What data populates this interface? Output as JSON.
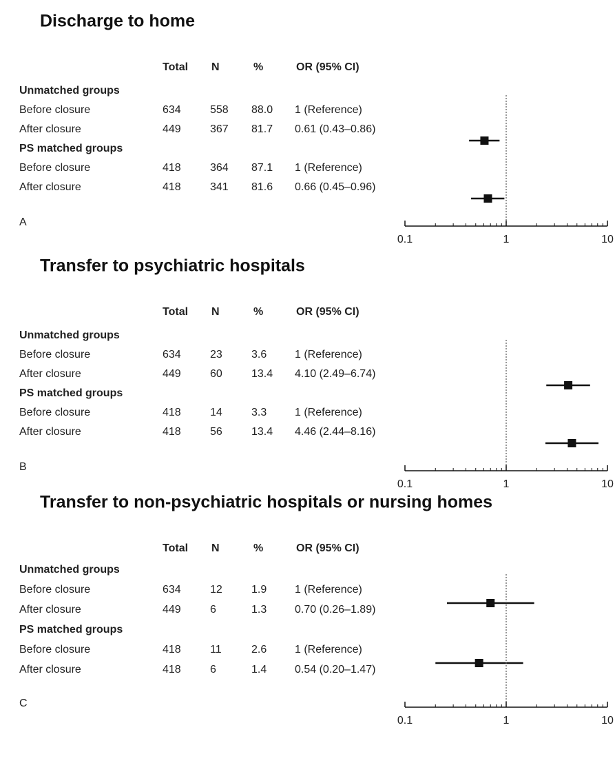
{
  "chart_data": [
    {
      "type": "forest",
      "title": "Discharge to home",
      "panel": "A",
      "columns": [
        "Total",
        "N",
        "%",
        "OR (95% CI)"
      ],
      "groups": [
        {
          "name": "Unmatched groups",
          "rows": [
            {
              "cells": [
                "Before closure",
                634,
                558,
                "88.0",
                "1 (Reference)"
              ]
            },
            {
              "cells": [
                "After closure",
                449,
                367,
                "81.7",
                "0.61 (0.43–0.86)"
              ],
              "or": 0.61,
              "ci": [
                0.43,
                0.86
              ]
            }
          ]
        },
        {
          "name": "PS matched groups",
          "rows": [
            {
              "cells": [
                "Before closure",
                418,
                364,
                "87.1",
                "1 (Reference)"
              ]
            },
            {
              "cells": [
                "After closure",
                418,
                341,
                "81.6",
                "0.66 (0.45–0.96)"
              ],
              "or": 0.66,
              "ci": [
                0.45,
                0.96
              ]
            }
          ]
        }
      ],
      "xscale": "log",
      "xlim": [
        0.1,
        10
      ],
      "xticks": [
        0.1,
        1,
        10
      ],
      "minor_xticks": [
        0.2,
        0.3,
        0.4,
        0.5,
        0.6,
        0.7,
        0.8,
        0.9,
        2,
        3,
        4,
        5,
        6,
        7,
        8,
        9
      ],
      "ref_line": 1,
      "color": "#111111"
    },
    {
      "type": "forest",
      "title": "Transfer to psychiatric hospitals",
      "panel": "B",
      "columns": [
        "Total",
        "N",
        "%",
        "OR (95% CI)"
      ],
      "groups": [
        {
          "name": "Unmatched groups",
          "rows": [
            {
              "cells": [
                "Before closure",
                634,
                23,
                "3.6",
                "1 (Reference)"
              ]
            },
            {
              "cells": [
                "After closure",
                449,
                60,
                "13.4",
                "4.10 (2.49–6.74)"
              ],
              "or": 4.1,
              "ci": [
                2.49,
                6.74
              ]
            }
          ]
        },
        {
          "name": "PS matched groups",
          "rows": [
            {
              "cells": [
                "Before closure",
                418,
                14,
                "3.3",
                "1 (Reference)"
              ]
            },
            {
              "cells": [
                "After closure",
                418,
                56,
                "13.4",
                "4.46 (2.44–8.16)"
              ],
              "or": 4.46,
              "ci": [
                2.44,
                8.16
              ]
            }
          ]
        }
      ],
      "xscale": "log",
      "xlim": [
        0.1,
        10
      ],
      "xticks": [
        0.1,
        1,
        10
      ],
      "minor_xticks": [
        0.2,
        0.3,
        0.4,
        0.5,
        0.6,
        0.7,
        0.8,
        0.9,
        2,
        3,
        4,
        5,
        6,
        7,
        8,
        9
      ],
      "ref_line": 1,
      "color": "#111111"
    },
    {
      "type": "forest",
      "title": "Transfer to non-psychiatric hospitals or nursing homes",
      "panel": "C",
      "columns": [
        "Total",
        "N",
        "%",
        "OR (95% CI)"
      ],
      "groups": [
        {
          "name": "Unmatched groups",
          "rows": [
            {
              "cells": [
                "Before closure",
                634,
                12,
                "1.9",
                "1 (Reference)"
              ]
            },
            {
              "cells": [
                "After closure",
                449,
                6,
                "1.3",
                "0.70 (0.26–1.89)"
              ],
              "or": 0.7,
              "ci": [
                0.26,
                1.89
              ]
            }
          ]
        },
        {
          "name": "PS matched groups",
          "rows": [
            {
              "cells": [
                "Before closure",
                418,
                11,
                "2.6",
                "1 (Reference)"
              ]
            },
            {
              "cells": [
                "After closure",
                418,
                6,
                "1.4",
                "0.54 (0.20–1.47)"
              ],
              "or": 0.54,
              "ci": [
                0.2,
                1.47
              ]
            }
          ]
        }
      ],
      "xscale": "log",
      "xlim": [
        0.1,
        10
      ],
      "xticks": [
        0.1,
        1,
        10
      ],
      "minor_xticks": [
        0.2,
        0.3,
        0.4,
        0.5,
        0.6,
        0.7,
        0.8,
        0.9,
        2,
        3,
        4,
        5,
        6,
        7,
        8,
        9
      ],
      "ref_line": 1,
      "color": "#111111"
    }
  ]
}
